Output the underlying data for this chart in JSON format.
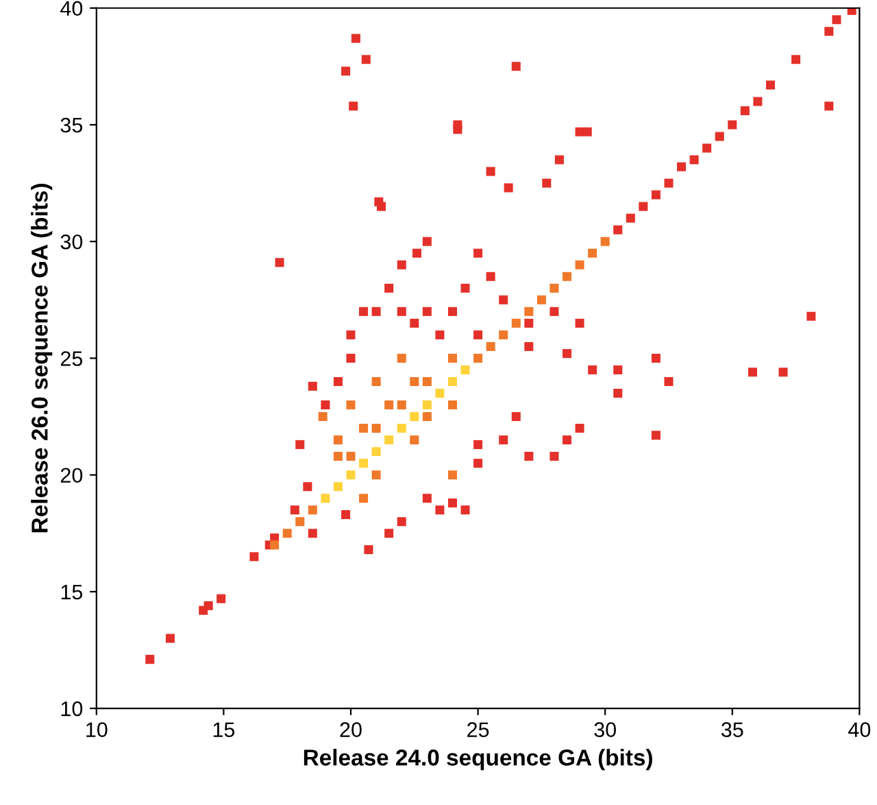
{
  "chart_data": {
    "type": "scatter",
    "xlabel": "Release 24.0 sequence GA (bits)",
    "ylabel": "Release 26.0 sequence GA (bits)",
    "xlim": [
      10,
      40
    ],
    "ylim": [
      10,
      40
    ],
    "xticks": [
      10,
      15,
      20,
      25,
      30,
      35,
      40
    ],
    "yticks": [
      10,
      15,
      20,
      25,
      30,
      35,
      40
    ],
    "grid": false,
    "marker": "square",
    "series": [
      {
        "color": "#e4302a",
        "x": [
          12.1,
          12.9,
          14.2,
          14.4,
          14.9,
          16.2,
          16.8,
          17.0,
          30.5,
          31,
          31.5,
          32,
          32.5,
          33,
          33.5,
          34,
          34.5,
          35,
          35.5,
          36,
          36.5,
          37.5,
          38.8,
          39.1,
          39.7,
          38.8,
          20.2,
          20.6,
          19.8,
          26.5,
          20.1,
          24.2,
          24.2,
          29,
          29.3,
          21.2,
          21.1,
          17.2,
          25.5,
          28.2,
          26.2,
          27.7,
          19,
          19.5,
          20,
          20,
          20.5,
          21,
          21.5,
          22,
          22.5,
          23,
          23.5,
          24,
          24.5,
          25,
          18.5,
          18.3,
          17.8,
          18,
          22,
          23,
          22.6,
          25,
          25.5,
          26,
          27,
          28,
          29,
          28.5,
          27,
          21.5,
          20.7,
          22,
          23,
          23.5,
          24,
          24.5,
          25,
          25,
          26,
          27,
          28,
          28.5,
          26.5,
          29.5,
          29,
          30.5,
          30.5,
          32,
          32.5,
          32,
          35.8,
          37,
          38.1,
          19.8,
          18.5
        ],
        "values": [
          12.1,
          13.0,
          14.2,
          14.4,
          14.7,
          16.5,
          17.0,
          17.3,
          30.5,
          31,
          31.5,
          32,
          32.5,
          33.2,
          33.5,
          34,
          34.5,
          35,
          35.6,
          36,
          36.7,
          37.8,
          39.0,
          39.5,
          39.9,
          35.8,
          38.7,
          37.8,
          37.3,
          37.5,
          35.8,
          34.8,
          35.0,
          34.7,
          34.7,
          31.5,
          31.7,
          29.1,
          33,
          33.5,
          32.3,
          32.5,
          23,
          24,
          25,
          26,
          27,
          27,
          28,
          27,
          26.5,
          27,
          26,
          27,
          28,
          26,
          23.8,
          19.5,
          18.5,
          21.3,
          29,
          30,
          29.5,
          29.5,
          28.5,
          27.5,
          26.5,
          27,
          26.5,
          25.2,
          25.5,
          17.5,
          16.8,
          18,
          19,
          18.5,
          18.8,
          18.5,
          20.5,
          21.3,
          21.5,
          20.8,
          20.8,
          21.5,
          22.5,
          24.5,
          22,
          23.5,
          24.5,
          25,
          24,
          21.7,
          24.4,
          24.4,
          26.8,
          18.3,
          17.5
        ]
      },
      {
        "color": "#f0782a",
        "x": [
          17,
          17.5,
          18,
          18.5,
          20,
          21,
          22,
          23,
          24,
          19.5,
          20.5,
          21.5,
          22.5,
          20,
          19.5,
          18.9,
          20.5,
          21,
          24,
          25,
          25.5,
          26,
          26.5,
          27,
          27.5,
          28,
          28.5,
          29,
          29.5,
          30,
          24,
          23,
          22,
          21,
          22.5
        ],
        "values": [
          17,
          17.5,
          18,
          18.5,
          23,
          24,
          25,
          24,
          25,
          21.5,
          22,
          23,
          24,
          20.8,
          20.8,
          22.5,
          19,
          20,
          20,
          25,
          25.5,
          26,
          26.5,
          27,
          27.5,
          28,
          28.5,
          29,
          29.5,
          30,
          23,
          22.5,
          23,
          22,
          21.5
        ]
      },
      {
        "color": "#ffd23a",
        "x": [
          19,
          19.5,
          20,
          20.5,
          21,
          21.5,
          22,
          22.5,
          23,
          23.5,
          24,
          24.5
        ],
        "values": [
          19,
          19.5,
          20,
          20.5,
          21,
          21.5,
          22,
          22.5,
          23,
          23.5,
          24,
          24.5
        ]
      }
    ]
  }
}
